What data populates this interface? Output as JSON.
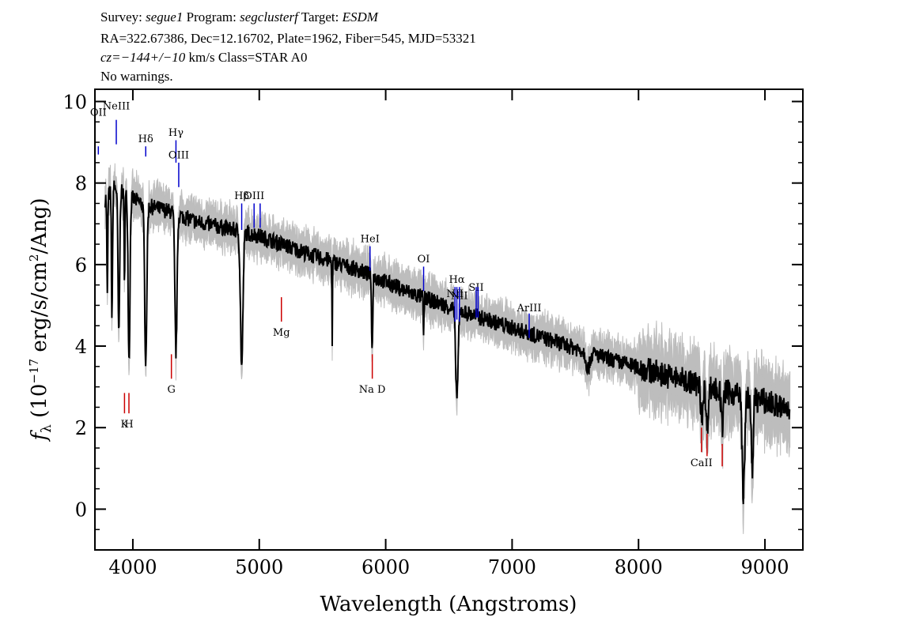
{
  "header": {
    "line1": {
      "survey_label": "Survey:",
      "survey": "segue1",
      "program_label": "Program:",
      "program": "segclusterf",
      "target_label": "Target:",
      "target": "ESDM"
    },
    "line2": "RA=322.67386, Dec=12.16702, Plate=1962, Fiber=545, MJD=53321",
    "line3": {
      "cz": "cz=−144+/−10",
      "rest": " km/s Class=STAR A0"
    },
    "line4": "No warnings."
  },
  "colors": {
    "flux": "#000000",
    "error": "#bdbdbd",
    "emission": "#0000cc",
    "absorption": "#cc0000"
  },
  "chart_data": {
    "type": "line",
    "xlabel": "Wavelength (Angstroms)",
    "ylabel_parts": {
      "f": "f",
      "sub": "λ",
      "pre": " (10",
      "exp": "−17",
      "mid": " erg/s/cm",
      "exp2": "2",
      "post": "/Ang)"
    },
    "xlim": [
      3700,
      9300
    ],
    "ylim": [
      -1,
      10.3
    ],
    "x_ticks": [
      4000,
      5000,
      6000,
      7000,
      8000,
      9000
    ],
    "y_ticks": [
      0,
      2,
      4,
      6,
      8,
      10
    ],
    "x_ticks_minor_step": 200,
    "y_ticks_minor_step": 0.5,
    "continuum": [
      [
        3780,
        7.6
      ],
      [
        3850,
        7.9
      ],
      [
        3950,
        7.7
      ],
      [
        4100,
        7.45
      ],
      [
        4300,
        7.3
      ],
      [
        4500,
        7.05
      ],
      [
        4800,
        6.85
      ],
      [
        5000,
        6.7
      ],
      [
        5400,
        6.25
      ],
      [
        5800,
        5.85
      ],
      [
        6200,
        5.3
      ],
      [
        6600,
        4.85
      ],
      [
        7000,
        4.45
      ],
      [
        7400,
        4.05
      ],
      [
        7800,
        3.65
      ],
      [
        8200,
        3.3
      ],
      [
        8600,
        2.95
      ],
      [
        9000,
        2.65
      ],
      [
        9200,
        2.4
      ]
    ],
    "absorption_features": [
      [
        3798,
        2.5,
        5
      ],
      [
        3835,
        3.2,
        6
      ],
      [
        3889,
        3.6,
        9
      ],
      [
        3934,
        2.0,
        5
      ],
      [
        3970,
        4.0,
        10
      ],
      [
        4102,
        3.8,
        12
      ],
      [
        4341,
        3.4,
        12
      ],
      [
        4861,
        3.3,
        14
      ],
      [
        5577,
        2.0,
        3
      ],
      [
        5893,
        1.9,
        6
      ],
      [
        6300,
        1.0,
        4
      ],
      [
        6563,
        2.1,
        14
      ],
      [
        7600,
        0.4,
        20
      ],
      [
        8500,
        0.8,
        12
      ],
      [
        8542,
        1.0,
        12
      ],
      [
        8662,
        0.9,
        12
      ],
      [
        8830,
        2.4,
        14
      ],
      [
        8900,
        2.0,
        10
      ]
    ],
    "noise_amp": 0.2,
    "error_amp": 0.35,
    "emission_lines": [
      {
        "label": "OII",
        "x": 3727,
        "y_top": 8.9,
        "y_bottom": 8.7,
        "label_y": 9.75
      },
      {
        "label": "NeIII",
        "x": 3869,
        "y_top": 9.55,
        "y_bottom": 8.95,
        "label_y": 9.9
      },
      {
        "label": "Hδ",
        "x": 4102,
        "y_top": 8.9,
        "y_bottom": 8.65,
        "label_y": 9.1
      },
      {
        "label": "Hγ",
        "x": 4341,
        "y_top": 9.05,
        "y_bottom": 8.5,
        "label_y": 9.25
      },
      {
        "label": "OIII",
        "x": 4363,
        "y_top": 8.5,
        "y_bottom": 7.9,
        "label_y": 8.7
      },
      {
        "label": "Hβ",
        "x": 4861,
        "y_top": 7.5,
        "y_bottom": 6.85,
        "label_y": 7.7
      },
      {
        "label": "OIII",
        "x": 4959,
        "y_top": 7.5,
        "y_bottom": 6.9,
        "label_y": 7.7
      },
      {
        "label": "",
        "x": 5007,
        "y_top": 7.5,
        "y_bottom": 6.9,
        "label_y": 7.7
      },
      {
        "label": "HeI",
        "x": 5876,
        "y_top": 6.45,
        "y_bottom": 5.85,
        "label_y": 6.65
      },
      {
        "label": "OI",
        "x": 6300,
        "y_top": 5.95,
        "y_bottom": 5.35,
        "label_y": 6.15
      },
      {
        "label": "NII",
        "x": 6548,
        "y_top": 5.45,
        "y_bottom": 4.6,
        "label_y": 5.3
      },
      {
        "label": "Hα",
        "x": 6563,
        "y_top": 5.45,
        "y_bottom": 4.65,
        "label_y": 5.65
      },
      {
        "label": "NII",
        "x": 6583,
        "y_top": 5.45,
        "y_bottom": 4.6,
        "label_y": 5.25
      },
      {
        "label": "SII",
        "x": 6716,
        "y_top": 5.45,
        "y_bottom": 4.7,
        "label_y": 5.45
      },
      {
        "label": "",
        "x": 6731,
        "y_top": 5.45,
        "y_bottom": 4.7,
        "label_y": 5.45
      },
      {
        "label": "ArIII",
        "x": 7135,
        "y_top": 4.8,
        "y_bottom": 4.2,
        "label_y": 4.95
      }
    ],
    "absorption_lines": [
      {
        "label": "K",
        "x": 3934,
        "y_top": 2.85,
        "y_bottom": 2.35,
        "label_y": 2.1
      },
      {
        "label": "H",
        "x": 3969,
        "y_top": 2.85,
        "y_bottom": 2.35,
        "label_y": 2.1
      },
      {
        "label": "G",
        "x": 4305,
        "y_top": 3.8,
        "y_bottom": 3.2,
        "label_y": 2.95
      },
      {
        "label": "Mg",
        "x": 5175,
        "y_top": 5.2,
        "y_bottom": 4.6,
        "label_y": 4.35
      },
      {
        "label": "Na D",
        "x": 5894,
        "y_top": 3.8,
        "y_bottom": 3.2,
        "label_y": 2.95
      },
      {
        "label": "CaII",
        "x": 8498,
        "y_top": 2.0,
        "y_bottom": 1.4,
        "label_y": 1.15
      },
      {
        "label": "",
        "x": 8542,
        "y_top": 1.85,
        "y_bottom": 1.3,
        "label_y": 1.15
      },
      {
        "label": "",
        "x": 8662,
        "y_top": 1.6,
        "y_bottom": 1.05,
        "label_y": 1.15
      }
    ]
  }
}
